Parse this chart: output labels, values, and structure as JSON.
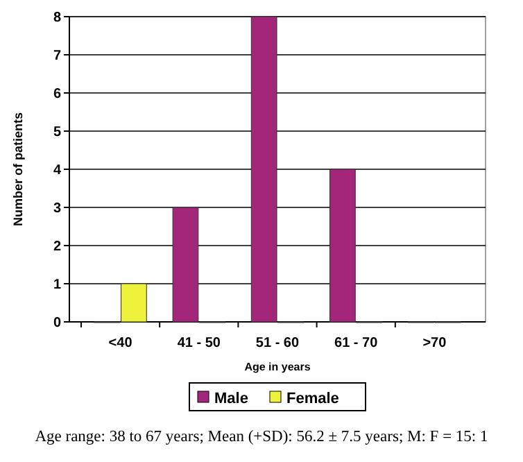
{
  "chart_data": {
    "type": "bar",
    "xlabel": "Age in years",
    "ylabel": "Number of patients",
    "categories": [
      "<40",
      "41 - 50",
      "51 - 60",
      "61 - 70",
      ">70"
    ],
    "series": [
      {
        "name": "Male",
        "color": "#a3267a",
        "values": [
          0,
          3,
          8,
          4,
          0
        ]
      },
      {
        "name": "Female",
        "color": "#eef23a",
        "values": [
          1,
          0,
          0,
          0,
          0
        ]
      }
    ],
    "ylim": [
      0,
      8
    ],
    "yticks": [
      0,
      1,
      2,
      3,
      4,
      5,
      6,
      7,
      8
    ],
    "grid": "y",
    "legend": "bottom",
    "annotations": [
      "Age range: 38 to 67 years; Mean (+SD): 56.2 ± 7.5 years; M: F = 15: 1"
    ]
  }
}
